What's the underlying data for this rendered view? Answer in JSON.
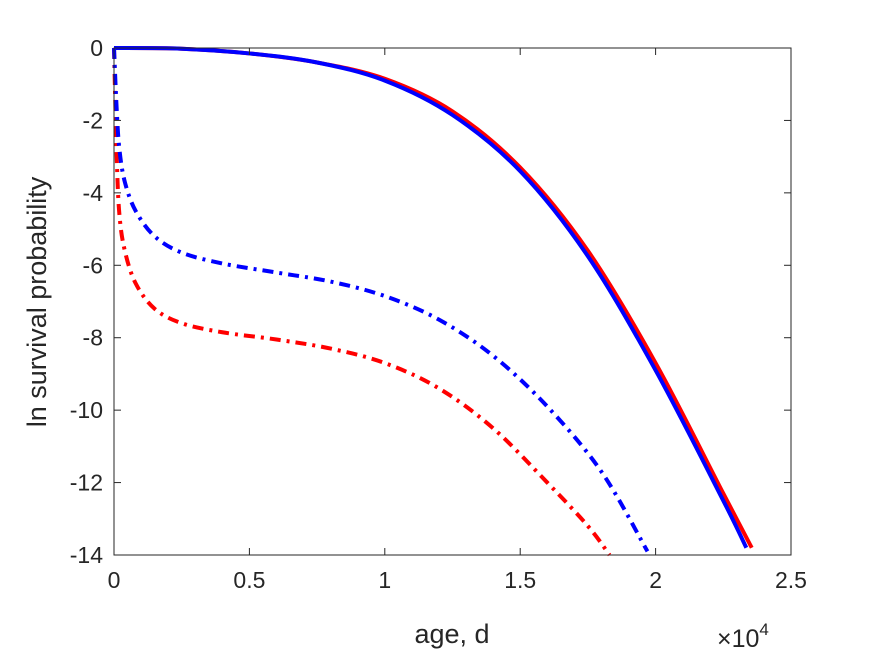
{
  "chart_data": {
    "type": "line",
    "title": "",
    "xlabel": "age, d",
    "ylabel": "ln survival probability",
    "x_exponent_label": {
      "base": "×10",
      "exponent": "4"
    },
    "xlim": [
      0,
      25000
    ],
    "ylim": [
      -14,
      0
    ],
    "grid": false,
    "legend": "none",
    "x_ticks": [
      {
        "value": 0,
        "label": "0"
      },
      {
        "value": 5000,
        "label": "0.5"
      },
      {
        "value": 10000,
        "label": "1"
      },
      {
        "value": 15000,
        "label": "1.5"
      },
      {
        "value": 20000,
        "label": "2"
      },
      {
        "value": 25000,
        "label": "2.5"
      }
    ],
    "y_ticks": [
      {
        "value": 0,
        "label": "0"
      },
      {
        "value": -2,
        "label": "-2"
      },
      {
        "value": -4,
        "label": "-4"
      },
      {
        "value": -6,
        "label": "-6"
      },
      {
        "value": -8,
        "label": "-8"
      },
      {
        "value": -10,
        "label": "-10"
      },
      {
        "value": -12,
        "label": "-12"
      },
      {
        "value": -14,
        "label": "-14"
      }
    ],
    "series": [
      {
        "color": "#ff0000",
        "style": "solid",
        "x": [
          0,
          2500,
          5000,
          7500,
          10000,
          12500,
          15000,
          17500,
          20000,
          22500,
          23550
        ],
        "y": [
          0,
          -0.02,
          -0.15,
          -0.4,
          -0.85,
          -1.75,
          -3.3,
          -5.6,
          -8.7,
          -12.3,
          -13.8
        ]
      },
      {
        "color": "#0000ff",
        "style": "solid",
        "x": [
          0,
          2500,
          5000,
          7500,
          10000,
          12500,
          15000,
          17500,
          20000,
          22500,
          23350
        ],
        "y": [
          0,
          -0.02,
          -0.15,
          -0.4,
          -0.9,
          -1.85,
          -3.4,
          -5.75,
          -8.9,
          -12.5,
          -13.8
        ]
      },
      {
        "color": "#ff0000",
        "style": "dashdot",
        "x": [
          0,
          100,
          200,
          400,
          800,
          1500,
          2500,
          4000,
          6000,
          8000,
          10000,
          12000,
          14000,
          16000,
          17500,
          18300
        ],
        "y": [
          0,
          -3.0,
          -4.6,
          -5.6,
          -6.5,
          -7.2,
          -7.6,
          -7.85,
          -8.05,
          -8.3,
          -8.7,
          -9.4,
          -10.5,
          -12.0,
          -13.2,
          -14.0
        ]
      },
      {
        "color": "#0000ff",
        "style": "dashdot",
        "x": [
          0,
          100,
          200,
          400,
          800,
          1500,
          2500,
          4000,
          6000,
          8000,
          10000,
          12000,
          14000,
          16000,
          18000,
          19700
        ],
        "y": [
          0,
          -1.7,
          -2.8,
          -3.7,
          -4.5,
          -5.2,
          -5.65,
          -5.95,
          -6.2,
          -6.45,
          -6.85,
          -7.5,
          -8.5,
          -9.9,
          -11.7,
          -13.9
        ]
      }
    ]
  }
}
